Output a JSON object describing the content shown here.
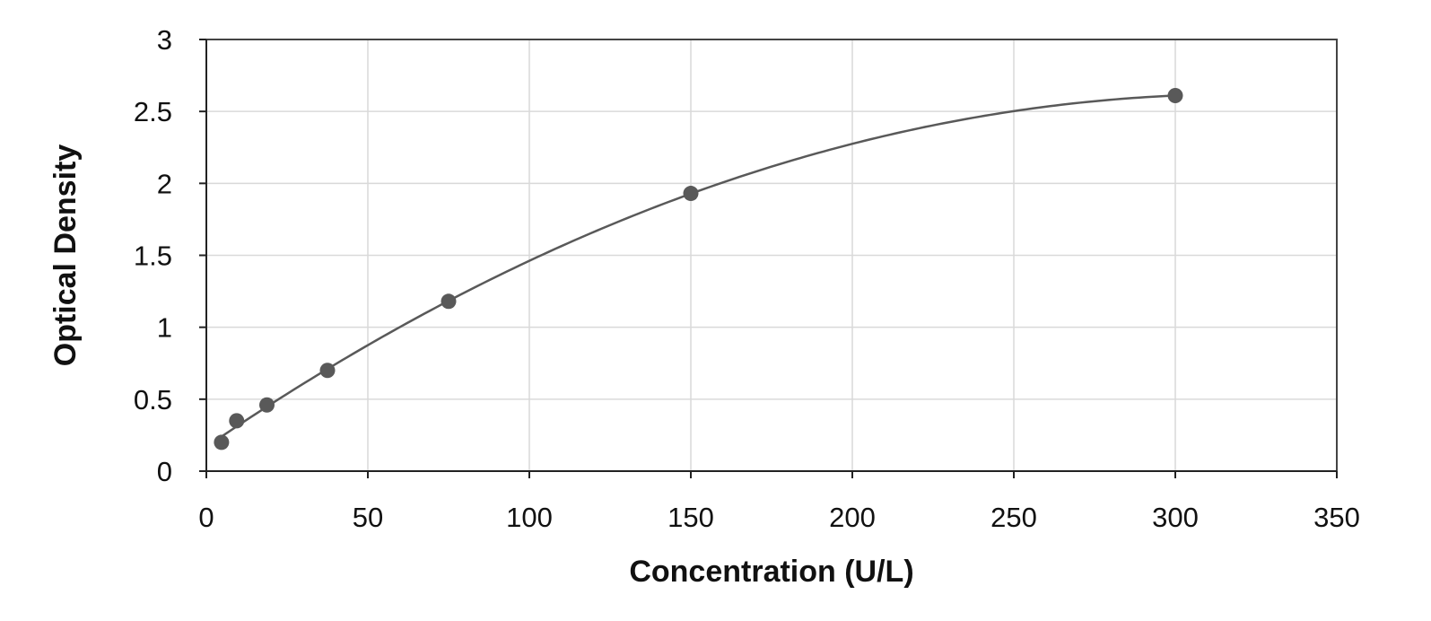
{
  "chart_data": {
    "type": "scatter",
    "title": "",
    "xlabel": "Concentration (U/L)",
    "ylabel": "Optical Density",
    "xlim": [
      0,
      350
    ],
    "ylim": [
      0,
      3
    ],
    "x_ticks": [
      "0",
      "50",
      "100",
      "150",
      "200",
      "250",
      "300",
      "350"
    ],
    "y_ticks": [
      "0",
      "0.5",
      "1",
      "1.5",
      "2",
      "2.5",
      "3"
    ],
    "grid": true,
    "legend": "none",
    "series": [
      {
        "x": [
          4.69,
          9.38,
          18.75,
          37.5,
          75,
          150,
          300
        ],
        "y": [
          0.2,
          0.35,
          0.46,
          0.7,
          1.18,
          1.93,
          2.61
        ],
        "trendline": "smooth-fit"
      }
    ],
    "colors": {
      "points": "#595959",
      "curve": "#595959",
      "grid": "#d9d9d9"
    }
  }
}
